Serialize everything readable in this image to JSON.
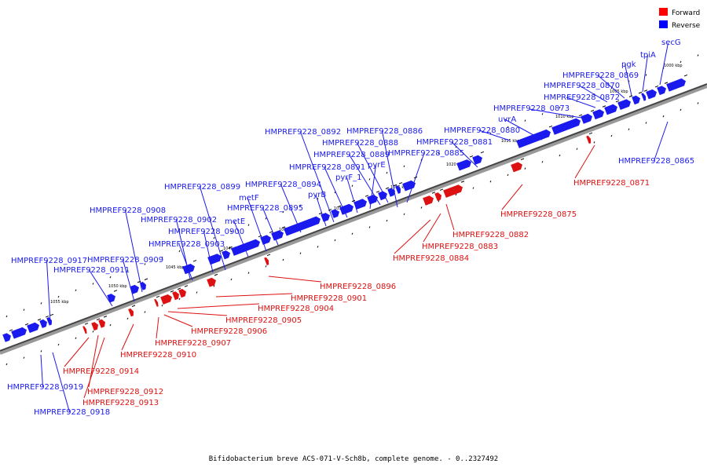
{
  "legend": {
    "forward_label": "Forward",
    "reverse_label": "Reverse",
    "forward_color": "#ff0000",
    "reverse_color": "#0000ff"
  },
  "caption": "Bifidobacterium breve ACS-071-V-Sch8b, complete genome. - 0..2327492",
  "kbp_ticks": [
    "1000 kbp",
    "1005 kbp",
    "1010 kbp",
    "1015 kbp",
    "1020 kbp",
    "1025 kbp",
    "1030 kbp",
    "1035 kbp",
    "1040 kbp",
    "1045 kbp",
    "1050 kbp",
    "1055 kbp"
  ],
  "reverse_genes": [
    "secG",
    "tpiA",
    "pgk",
    "HMPREF9228_0869",
    "HMPREF9228_0870",
    "HMPREF9228_0872",
    "HMPREF9228_0873",
    "uvrA",
    "HMPREF9228_0880",
    "HMPREF9228_0881",
    "HMPREF9228_0885",
    "HMPREF9228_0886",
    "HMPREF9228_0888",
    "HMPREF9228_0889",
    "pyrE",
    "pyrF_1",
    "HMPREF9228_0891",
    "HMPREF9228_0892",
    "pyrB",
    "HMPREF9228_0894",
    "HMPREF9228_0895",
    "metF",
    "metE",
    "HMPREF9228_0899",
    "HMPREF9228_0900",
    "HMPREF9228_0902",
    "HMPREF9228_0903",
    "HMPREF9228_0908",
    "HMPREF9228_0909",
    "HMPREF9228_0911",
    "HMPREF9228_0917",
    "HMPREF9228_0865",
    "HMPREF9228_0919",
    "HMPREF9228_0918"
  ],
  "forward_genes": [
    "HMPREF9228_0871",
    "HMPREF9228_0875",
    "HMPREF9228_0882",
    "HMPREF9228_0883",
    "HMPREF9228_0884",
    "HMPREF9228_0896",
    "HMPREF9228_0901",
    "HMPREF9228_0904",
    "HMPREF9228_0905",
    "HMPREF9228_0906",
    "HMPREF9228_0907",
    "HMPREF9228_0910",
    "HMPREF9228_0914",
    "HMPREF9228_0912",
    "HMPREF9228_0913"
  ]
}
